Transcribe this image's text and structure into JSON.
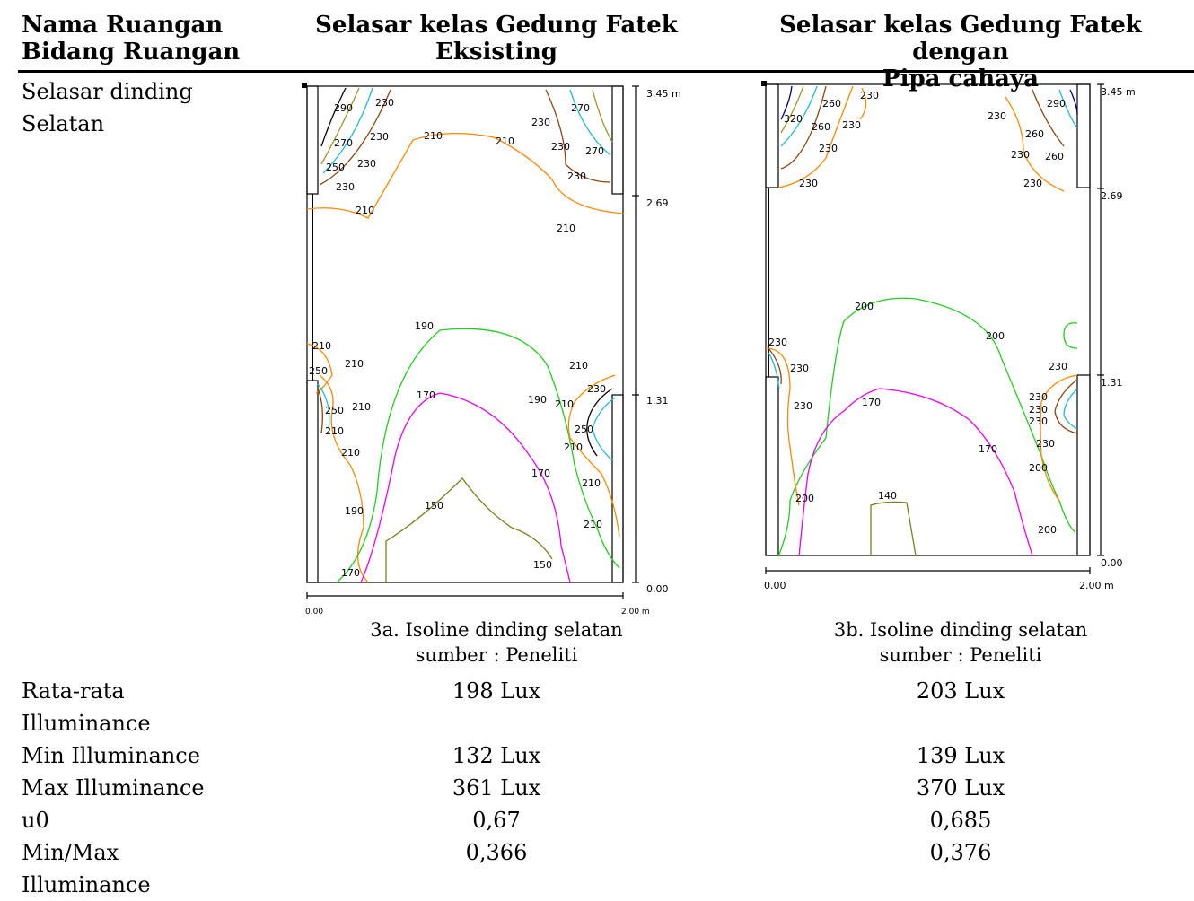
{
  "table": {
    "header": {
      "col1_line1": "Nama Ruangan",
      "col1_line2": "Bidang Ruangan",
      "col2_line1": "Selasar kelas Gedung Fatek",
      "col2_line2": "Eksisting",
      "col3_line1": "Selasar kelas Gedung Fatek dengan",
      "col3_line2": "Pipa cahaya"
    },
    "row_wall": {
      "label_line1": "Selasar dinding",
      "label_line2": "Selatan",
      "caption_a_line1": "3a. Isoline dinding selatan",
      "caption_a_line2": "sumber : Peneliti",
      "caption_b_line1": "3b. Isoline dinding selatan",
      "caption_b_line2": "sumber : Peneliti"
    },
    "rows": [
      {
        "label_line1": "Rata-rata",
        "label_line2": "Illuminance",
        "a": "198 Lux",
        "b": "203 Lux"
      },
      {
        "label_line1": "Min Illuminance",
        "a": "132 Lux",
        "b": "139 Lux"
      },
      {
        "label_line1": "Max Illuminance",
        "a": "361 Lux",
        "b": "370 Lux"
      },
      {
        "label_line1": "u0",
        "a": "0,67",
        "b": "0,685"
      },
      {
        "label_line1": "Min/Max",
        "label_line2": "Illuminance",
        "a": "0,366",
        "b": "0,376"
      }
    ]
  },
  "isoline_a": {
    "y_top": "3.45 m",
    "y_mid1": "2.69",
    "y_mid2": "1.31",
    "y_bottom": "0.00",
    "x_left": "0.00",
    "x_right": "2.00 m",
    "labels": [
      "290",
      "230",
      "270",
      "230",
      "250",
      "230",
      "230",
      "210",
      "210",
      "230",
      "270",
      "230",
      "270",
      "230",
      "210",
      "210",
      "210",
      "190",
      "210",
      "210",
      "250",
      "170",
      "190",
      "210",
      "230",
      "250",
      "210",
      "210",
      "250",
      "210",
      "210",
      "170",
      "210",
      "190",
      "150",
      "210",
      "150",
      "170"
    ]
  },
  "isoline_b": {
    "y_top": "3.45 m",
    "y_mid1": "2.69",
    "y_mid2": "1.31",
    "y_bottom": "0.00",
    "x_left": "0.00",
    "x_right": "2.00 m",
    "labels": [
      "230",
      "260",
      "320",
      "260",
      "230",
      "230",
      "230",
      "290",
      "230",
      "260",
      "230",
      "260",
      "230",
      "230",
      "200",
      "200",
      "230",
      "230",
      "230",
      "230",
      "170",
      "230",
      "170",
      "230",
      "230",
      "200",
      "200",
      "140",
      "200"
    ]
  }
}
